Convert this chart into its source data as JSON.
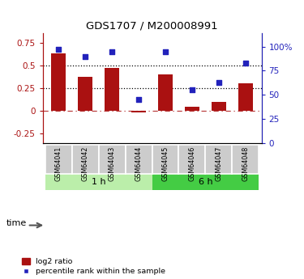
{
  "title": "GDS1707 / M200008991",
  "samples": [
    "GSM64041",
    "GSM64042",
    "GSM64043",
    "GSM64044",
    "GSM64045",
    "GSM64046",
    "GSM64047",
    "GSM64048"
  ],
  "log2_ratio": [
    0.63,
    0.37,
    0.47,
    -0.02,
    0.4,
    0.05,
    0.1,
    0.3
  ],
  "percentile_rank": [
    97,
    90,
    95,
    45,
    95,
    55,
    63,
    83
  ],
  "groups": [
    {
      "label": "1 h",
      "n": 4,
      "color": "#aaddaa"
    },
    {
      "label": "6 h",
      "n": 4,
      "color": "#55cc55"
    }
  ],
  "bar_color": "#aa1111",
  "scatter_color": "#2222bb",
  "ylim_left": [
    -0.35,
    0.85
  ],
  "ylim_right": [
    0,
    113.75
  ],
  "yticks_left": [
    -0.25,
    0,
    0.25,
    0.5,
    0.75
  ],
  "yticks_right": [
    0,
    25,
    50,
    75,
    100
  ],
  "yticklabels_left": [
    "-0.25",
    "0",
    "0.25",
    "0.5",
    "0.75"
  ],
  "yticklabels_right": [
    "0",
    "25",
    "50",
    "75",
    "100%"
  ],
  "hlines_dotted": [
    0.25,
    0.5
  ],
  "hline_dash": 0.0,
  "legend_log2": "log2 ratio",
  "legend_pct": "percentile rank within the sample",
  "time_label": "time",
  "bar_color_left": "#aa1111",
  "scatter_color_right": "#2222bb",
  "background_color": "#ffffff",
  "cell_color": "#cccccc",
  "cell_border": "#ffffff",
  "group1_color": "#bbeeaa",
  "group2_color": "#44cc44"
}
